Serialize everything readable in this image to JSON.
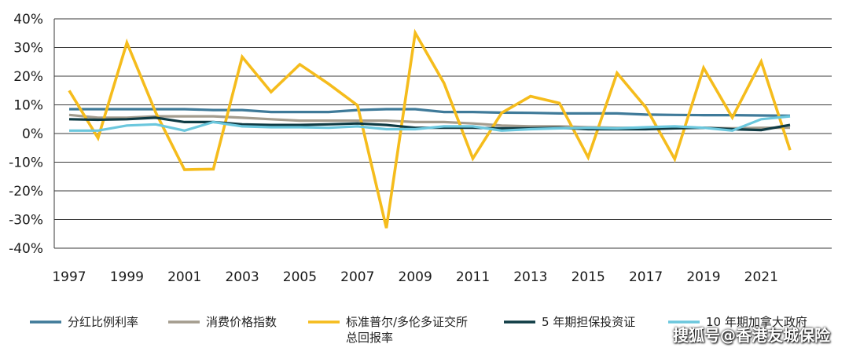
{
  "chart_data": {
    "type": "line",
    "title": "",
    "xlabel": "",
    "ylabel": "",
    "ylim": [
      -40,
      40
    ],
    "yticks": [
      40,
      30,
      20,
      10,
      0,
      -10,
      -20,
      -30,
      -40
    ],
    "ytick_labels": [
      "40%",
      "30%",
      "20%",
      "10%",
      "0%",
      "-10%",
      "-20%",
      "-30%",
      "-40%"
    ],
    "xlim": [
      1997,
      2022
    ],
    "xtick_labels": [
      "1997",
      "1999",
      "2001",
      "2003",
      "2005",
      "2007",
      "2009",
      "2011",
      "2013",
      "2015",
      "2017",
      "2019",
      "2021"
    ],
    "grid": "horizontal",
    "legend_position": "bottom",
    "x": [
      1997,
      1998,
      1999,
      2000,
      2001,
      2002,
      2003,
      2004,
      2005,
      2006,
      2007,
      2008,
      2009,
      2010,
      2011,
      2012,
      2013,
      2014,
      2015,
      2016,
      2017,
      2018,
      2019,
      2020,
      2021,
      2022
    ],
    "series": [
      {
        "name": "分红比例利率",
        "color": "#3f7a99",
        "values": [
          8.5,
          8.5,
          8.5,
          8.5,
          8.5,
          8.2,
          8.2,
          7.5,
          7.5,
          7.5,
          8.2,
          8.5,
          8.5,
          7.5,
          7.5,
          7.3,
          7.2,
          7.0,
          7.0,
          7.0,
          6.6,
          6.5,
          6.4,
          6.4,
          6.3,
          6.2
        ]
      },
      {
        "name": "消费价格指数",
        "color": "#a39c8e",
        "values": [
          6.5,
          5.5,
          5.5,
          6.0,
          6.0,
          6.0,
          5.5,
          5.0,
          4.5,
          4.5,
          4.5,
          4.5,
          4.0,
          4.0,
          3.5,
          2.8,
          2.5,
          2.5,
          2.2,
          2.0,
          2.0,
          2.0,
          2.0,
          1.8,
          2.0,
          2.0
        ]
      },
      {
        "name": "标准普尔/多伦多证交所总回报率",
        "color": "#f5bc1c",
        "values": [
          15.0,
          -1.6,
          31.7,
          7.4,
          -12.6,
          -12.4,
          26.7,
          14.5,
          24.1,
          17.3,
          9.8,
          -33.0,
          35.1,
          17.6,
          -8.7,
          7.2,
          13.0,
          10.6,
          -8.3,
          21.1,
          9.1,
          -8.9,
          22.9,
          5.6,
          25.1,
          -5.8
        ]
      },
      {
        "name": "5 年期担保投资证",
        "color": "#0f3b44",
        "values": [
          5.0,
          4.8,
          5.0,
          5.5,
          4.0,
          4.0,
          3.2,
          3.0,
          3.0,
          3.2,
          3.5,
          3.0,
          2.0,
          2.0,
          2.0,
          1.8,
          1.8,
          2.0,
          1.5,
          1.5,
          1.5,
          1.8,
          2.0,
          1.5,
          1.2,
          3.0
        ]
      },
      {
        "name": "10 年期加拿大政府",
        "color": "#6bc7dd",
        "values": [
          1.0,
          1.0,
          2.8,
          3.2,
          1.0,
          4.0,
          2.5,
          2.2,
          2.2,
          2.0,
          2.5,
          1.5,
          1.5,
          2.5,
          2.5,
          1.0,
          1.5,
          1.8,
          2.0,
          1.8,
          2.2,
          2.5,
          2.0,
          1.0,
          5.0,
          6.0
        ]
      }
    ],
    "legend": [
      "分红比例利率",
      "消费价格指数",
      "标准普尔/多伦多证交所总回报率",
      "5 年期担保投资证",
      "10 年期加拿大政府"
    ]
  },
  "legend_items": [
    {
      "line1": "分红比例利率",
      "line2": ""
    },
    {
      "line1": "消费价格指数",
      "line2": ""
    },
    {
      "line1": "标准普尔/多伦多证交所",
      "line2": "总回报率"
    },
    {
      "line1": "5 年期担保投资证",
      "line2": ""
    },
    {
      "line1": "10 年期加拿大政府",
      "line2": ""
    }
  ],
  "watermark": "搜狐号@香港友城保险"
}
